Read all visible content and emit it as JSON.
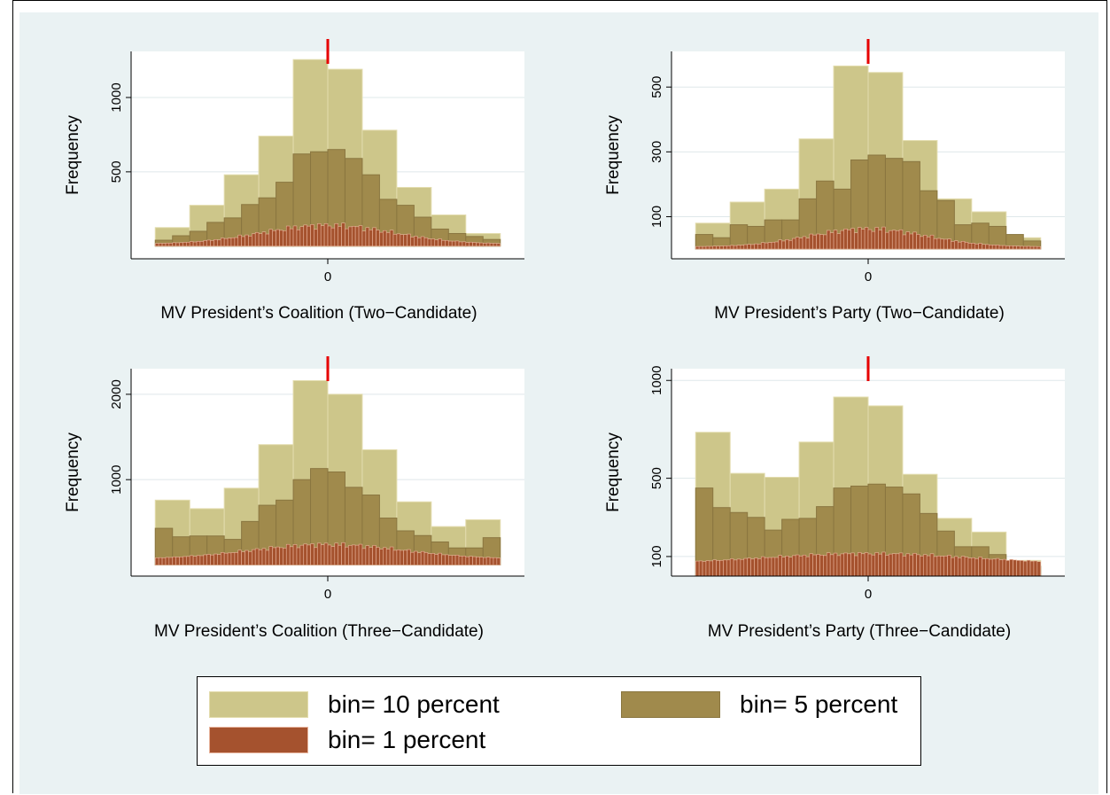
{
  "colors": {
    "bin10": "#cdc68a",
    "bin10_edge": "#e3dcae",
    "bin5": "#a08a4c",
    "bin5_edge": "#8a7640",
    "bin1": "#a5522e",
    "bin1_edge": "#e8b49c",
    "cutoff_line": "#e60000"
  },
  "legend": {
    "bin10": "bin= 10 percent",
    "bin5": "bin= 5 percent",
    "bin1": "bin= 1 percent"
  },
  "chart_data": [
    {
      "type": "bar",
      "ylabel": "Frequency",
      "xlabel": "MV President’s Coalition (Two−Candidate)",
      "xlim": [
        -0.57,
        0.57
      ],
      "ylim": [
        -85,
        1310
      ],
      "xticks": [
        0
      ],
      "yticks": [
        500,
        1000
      ],
      "cutoff": 0,
      "series": [
        {
          "key": "bin10",
          "bin_width": 0.1,
          "start": -0.5,
          "values": [
            125,
            275,
            480,
            740,
            1255,
            1190,
            780,
            395,
            210,
            85
          ]
        },
        {
          "key": "bin5",
          "bin_width": 0.05,
          "start": -0.5,
          "values": [
            40,
            70,
            100,
            160,
            190,
            280,
            325,
            430,
            620,
            635,
            650,
            590,
            480,
            315,
            275,
            195,
            115,
            85,
            65,
            45
          ]
        },
        {
          "key": "bin1",
          "bin_width": 0.01,
          "start": -0.5,
          "pattern": "wave",
          "peak": 140,
          "base": 14,
          "spread": 0.19
        }
      ]
    },
    {
      "type": "bar",
      "ylabel": "Frequency",
      "xlabel": "MV President’s Party (Two−Candidate)",
      "xlim": [
        -0.57,
        0.57
      ],
      "ylim": [
        -30,
        610
      ],
      "xticks": [
        0
      ],
      "yticks": [
        100,
        300,
        500
      ],
      "cutoff": 0,
      "series": [
        {
          "key": "bin10",
          "bin_width": 0.1,
          "start": -0.5,
          "values": [
            80,
            145,
            185,
            340,
            565,
            545,
            335,
            155,
            115,
            35
          ]
        },
        {
          "key": "bin5",
          "bin_width": 0.05,
          "start": -0.5,
          "values": [
            45,
            35,
            75,
            70,
            90,
            90,
            155,
            210,
            185,
            275,
            290,
            280,
            270,
            180,
            150,
            75,
            80,
            70,
            45,
            25
          ]
        },
        {
          "key": "bin1",
          "bin_width": 0.01,
          "start": -0.5,
          "pattern": "wave",
          "peak": 62,
          "base": 7,
          "spread": 0.17
        }
      ]
    },
    {
      "type": "bar",
      "ylabel": "Frequency",
      "xlabel": "MV President’s Coalition (Three−Candidate)",
      "xlim": [
        -0.57,
        0.57
      ],
      "ylim": [
        -130,
        2300
      ],
      "xticks": [
        0
      ],
      "yticks": [
        1000,
        2000
      ],
      "cutoff": 0,
      "series": [
        {
          "key": "bin10",
          "bin_width": 0.1,
          "start": -0.5,
          "values": [
            760,
            660,
            900,
            1410,
            2160,
            2000,
            1350,
            740,
            450,
            530
          ]
        },
        {
          "key": "bin5",
          "bin_width": 0.05,
          "start": -0.5,
          "values": [
            430,
            330,
            340,
            340,
            300,
            510,
            700,
            760,
            1000,
            1130,
            1090,
            910,
            820,
            550,
            400,
            345,
            270,
            200,
            200,
            320
          ]
        },
        {
          "key": "bin1",
          "bin_width": 0.01,
          "start": -0.5,
          "pattern": "wave",
          "peak": 240,
          "base": 70,
          "spread": 0.22
        }
      ]
    },
    {
      "type": "bar",
      "ylabel": "Frequency",
      "xlabel": "MV President’s Party (Three−Candidate)",
      "xlim": [
        -0.57,
        0.57
      ],
      "ylim": [
        0,
        1060
      ],
      "xticks": [
        0
      ],
      "yticks": [
        100,
        500,
        1000
      ],
      "cutoff": 0,
      "series": [
        {
          "key": "bin10",
          "bin_width": 0.1,
          "start": -0.5,
          "values": [
            735,
            525,
            505,
            685,
            915,
            870,
            520,
            295,
            225,
            80
          ]
        },
        {
          "key": "bin5",
          "bin_width": 0.05,
          "start": -0.5,
          "values": [
            450,
            350,
            325,
            300,
            235,
            290,
            295,
            355,
            450,
            460,
            470,
            455,
            420,
            320,
            230,
            150,
            150,
            110,
            70,
            50
          ]
        },
        {
          "key": "bin1",
          "bin_width": 0.01,
          "start": -0.5,
          "pattern": "wave",
          "peak": 115,
          "base": 62,
          "spread": 0.3
        }
      ]
    }
  ]
}
